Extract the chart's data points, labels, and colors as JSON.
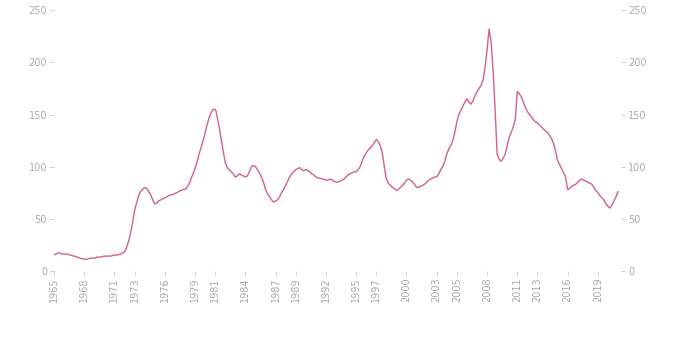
{
  "line_color": "#d4608a",
  "line_width": 1.0,
  "background_color": "#ffffff",
  "ylim": [
    0,
    250
  ],
  "yticks": [
    0,
    50,
    100,
    150,
    200,
    250
  ],
  "xtick_years": [
    1965,
    1968,
    1971,
    1973,
    1976,
    1979,
    1981,
    1984,
    1987,
    1989,
    1992,
    1995,
    1997,
    2000,
    2003,
    2005,
    2008,
    2011,
    2013,
    2016,
    2019
  ],
  "xlim_start": 1965,
  "xlim_end": 2021.3,
  "detailed_points": [
    [
      1965.0,
      15
    ],
    [
      1965.2,
      16
    ],
    [
      1965.4,
      17
    ],
    [
      1965.6,
      17
    ],
    [
      1965.8,
      16
    ],
    [
      1966.0,
      16
    ],
    [
      1966.3,
      16
    ],
    [
      1966.6,
      15
    ],
    [
      1967.0,
      14
    ],
    [
      1967.3,
      13
    ],
    [
      1967.6,
      12
    ],
    [
      1968.0,
      11
    ],
    [
      1968.3,
      11
    ],
    [
      1968.6,
      12
    ],
    [
      1969.0,
      12
    ],
    [
      1969.3,
      13
    ],
    [
      1969.6,
      13
    ],
    [
      1970.0,
      14
    ],
    [
      1970.3,
      14
    ],
    [
      1970.6,
      14
    ],
    [
      1971.0,
      15
    ],
    [
      1971.3,
      15
    ],
    [
      1971.6,
      16
    ],
    [
      1972.0,
      18
    ],
    [
      1972.2,
      22
    ],
    [
      1972.4,
      28
    ],
    [
      1972.6,
      36
    ],
    [
      1972.8,
      46
    ],
    [
      1973.0,
      58
    ],
    [
      1973.2,
      65
    ],
    [
      1973.4,
      72
    ],
    [
      1973.6,
      76
    ],
    [
      1973.8,
      78
    ],
    [
      1974.0,
      80
    ],
    [
      1974.2,
      79
    ],
    [
      1974.4,
      76
    ],
    [
      1974.6,
      73
    ],
    [
      1974.8,
      68
    ],
    [
      1975.0,
      64
    ],
    [
      1975.2,
      65
    ],
    [
      1975.4,
      67
    ],
    [
      1975.6,
      68
    ],
    [
      1975.8,
      69
    ],
    [
      1976.0,
      70
    ],
    [
      1976.2,
      71
    ],
    [
      1976.4,
      72
    ],
    [
      1976.6,
      73
    ],
    [
      1976.8,
      73
    ],
    [
      1977.0,
      74
    ],
    [
      1977.2,
      75
    ],
    [
      1977.4,
      76
    ],
    [
      1977.6,
      77
    ],
    [
      1977.8,
      78
    ],
    [
      1978.0,
      78
    ],
    [
      1978.2,
      80
    ],
    [
      1978.4,
      83
    ],
    [
      1978.6,
      88
    ],
    [
      1978.8,
      93
    ],
    [
      1979.0,
      98
    ],
    [
      1979.2,
      104
    ],
    [
      1979.4,
      112
    ],
    [
      1979.6,
      118
    ],
    [
      1979.8,
      125
    ],
    [
      1980.0,
      132
    ],
    [
      1980.2,
      140
    ],
    [
      1980.4,
      147
    ],
    [
      1980.6,
      152
    ],
    [
      1980.8,
      155
    ],
    [
      1981.0,
      155
    ],
    [
      1981.1,
      153
    ],
    [
      1981.2,
      148
    ],
    [
      1981.4,
      138
    ],
    [
      1981.6,
      126
    ],
    [
      1981.8,
      115
    ],
    [
      1982.0,
      104
    ],
    [
      1982.2,
      99
    ],
    [
      1982.4,
      97
    ],
    [
      1982.6,
      95
    ],
    [
      1982.8,
      93
    ],
    [
      1983.0,
      90
    ],
    [
      1983.2,
      91
    ],
    [
      1983.4,
      93
    ],
    [
      1983.6,
      92
    ],
    [
      1983.8,
      91
    ],
    [
      1984.0,
      90
    ],
    [
      1984.2,
      91
    ],
    [
      1984.4,
      95
    ],
    [
      1984.6,
      100
    ],
    [
      1984.8,
      101
    ],
    [
      1985.0,
      100
    ],
    [
      1985.2,
      97
    ],
    [
      1985.4,
      94
    ],
    [
      1985.6,
      90
    ],
    [
      1985.8,
      85
    ],
    [
      1986.0,
      78
    ],
    [
      1986.2,
      74
    ],
    [
      1986.4,
      71
    ],
    [
      1986.6,
      68
    ],
    [
      1986.8,
      66
    ],
    [
      1987.0,
      67
    ],
    [
      1987.2,
      68
    ],
    [
      1987.4,
      71
    ],
    [
      1987.6,
      75
    ],
    [
      1987.8,
      78
    ],
    [
      1988.0,
      82
    ],
    [
      1988.2,
      86
    ],
    [
      1988.4,
      90
    ],
    [
      1988.6,
      93
    ],
    [
      1988.8,
      95
    ],
    [
      1989.0,
      97
    ],
    [
      1989.2,
      98
    ],
    [
      1989.4,
      99
    ],
    [
      1989.6,
      97
    ],
    [
      1989.8,
      96
    ],
    [
      1990.0,
      97
    ],
    [
      1990.2,
      96
    ],
    [
      1990.4,
      95
    ],
    [
      1990.6,
      93
    ],
    [
      1990.8,
      92
    ],
    [
      1991.0,
      90
    ],
    [
      1991.2,
      89
    ],
    [
      1991.4,
      89
    ],
    [
      1991.6,
      88
    ],
    [
      1991.8,
      88
    ],
    [
      1992.0,
      87
    ],
    [
      1992.2,
      87
    ],
    [
      1992.4,
      88
    ],
    [
      1992.6,
      87
    ],
    [
      1992.8,
      86
    ],
    [
      1993.0,
      85
    ],
    [
      1993.2,
      85
    ],
    [
      1993.4,
      86
    ],
    [
      1993.6,
      87
    ],
    [
      1993.8,
      88
    ],
    [
      1994.0,
      90
    ],
    [
      1994.2,
      92
    ],
    [
      1994.4,
      93
    ],
    [
      1994.6,
      94
    ],
    [
      1994.8,
      95
    ],
    [
      1995.0,
      95
    ],
    [
      1995.2,
      97
    ],
    [
      1995.4,
      100
    ],
    [
      1995.6,
      105
    ],
    [
      1995.8,
      110
    ],
    [
      1996.0,
      113
    ],
    [
      1996.2,
      116
    ],
    [
      1996.4,
      118
    ],
    [
      1996.6,
      120
    ],
    [
      1996.8,
      123
    ],
    [
      1997.0,
      126
    ],
    [
      1997.2,
      124
    ],
    [
      1997.4,
      120
    ],
    [
      1997.6,
      113
    ],
    [
      1997.8,
      100
    ],
    [
      1998.0,
      88
    ],
    [
      1998.2,
      84
    ],
    [
      1998.4,
      82
    ],
    [
      1998.6,
      80
    ],
    [
      1998.8,
      79
    ],
    [
      1999.0,
      77
    ],
    [
      1999.2,
      78
    ],
    [
      1999.4,
      80
    ],
    [
      1999.6,
      82
    ],
    [
      1999.8,
      84
    ],
    [
      2000.0,
      87
    ],
    [
      2000.2,
      88
    ],
    [
      2000.4,
      87
    ],
    [
      2000.6,
      85
    ],
    [
      2000.8,
      83
    ],
    [
      2001.0,
      80
    ],
    [
      2001.2,
      80
    ],
    [
      2001.4,
      81
    ],
    [
      2001.6,
      82
    ],
    [
      2001.8,
      83
    ],
    [
      2002.0,
      85
    ],
    [
      2002.2,
      87
    ],
    [
      2002.4,
      88
    ],
    [
      2002.6,
      89
    ],
    [
      2002.8,
      90
    ],
    [
      2003.0,
      90
    ],
    [
      2003.2,
      93
    ],
    [
      2003.4,
      97
    ],
    [
      2003.6,
      100
    ],
    [
      2003.8,
      105
    ],
    [
      2004.0,
      112
    ],
    [
      2004.2,
      117
    ],
    [
      2004.4,
      120
    ],
    [
      2004.6,
      125
    ],
    [
      2004.8,
      133
    ],
    [
      2005.0,
      143
    ],
    [
      2005.2,
      150
    ],
    [
      2005.4,
      154
    ],
    [
      2005.6,
      158
    ],
    [
      2005.8,
      162
    ],
    [
      2006.0,
      165
    ],
    [
      2006.2,
      162
    ],
    [
      2006.4,
      160
    ],
    [
      2006.6,
      163
    ],
    [
      2006.8,
      168
    ],
    [
      2007.0,
      172
    ],
    [
      2007.2,
      175
    ],
    [
      2007.4,
      178
    ],
    [
      2007.6,
      183
    ],
    [
      2007.8,
      195
    ],
    [
      2008.0,
      212
    ],
    [
      2008.2,
      232
    ],
    [
      2008.4,
      220
    ],
    [
      2008.6,
      192
    ],
    [
      2008.8,
      155
    ],
    [
      2009.0,
      112
    ],
    [
      2009.2,
      107
    ],
    [
      2009.4,
      105
    ],
    [
      2009.6,
      108
    ],
    [
      2009.8,
      112
    ],
    [
      2010.0,
      120
    ],
    [
      2010.2,
      128
    ],
    [
      2010.4,
      133
    ],
    [
      2010.6,
      138
    ],
    [
      2010.8,
      145
    ],
    [
      2011.0,
      172
    ],
    [
      2011.2,
      170
    ],
    [
      2011.4,
      167
    ],
    [
      2011.6,
      162
    ],
    [
      2011.8,
      157
    ],
    [
      2012.0,
      153
    ],
    [
      2012.2,
      150
    ],
    [
      2012.4,
      148
    ],
    [
      2012.6,
      145
    ],
    [
      2012.8,
      143
    ],
    [
      2013.0,
      142
    ],
    [
      2013.2,
      140
    ],
    [
      2013.4,
      138
    ],
    [
      2013.6,
      136
    ],
    [
      2013.8,
      134
    ],
    [
      2014.0,
      133
    ],
    [
      2014.2,
      130
    ],
    [
      2014.4,
      127
    ],
    [
      2014.6,
      122
    ],
    [
      2014.8,
      115
    ],
    [
      2015.0,
      106
    ],
    [
      2015.2,
      102
    ],
    [
      2015.4,
      98
    ],
    [
      2015.6,
      94
    ],
    [
      2015.8,
      90
    ],
    [
      2016.0,
      78
    ],
    [
      2016.2,
      79
    ],
    [
      2016.4,
      81
    ],
    [
      2016.6,
      82
    ],
    [
      2016.8,
      83
    ],
    [
      2017.0,
      85
    ],
    [
      2017.2,
      87
    ],
    [
      2017.4,
      88
    ],
    [
      2017.6,
      87
    ],
    [
      2017.8,
      86
    ],
    [
      2018.0,
      85
    ],
    [
      2018.2,
      84
    ],
    [
      2018.4,
      83
    ],
    [
      2018.6,
      80
    ],
    [
      2018.8,
      77
    ],
    [
      2019.0,
      75
    ],
    [
      2019.2,
      72
    ],
    [
      2019.4,
      70
    ],
    [
      2019.6,
      68
    ],
    [
      2019.8,
      64
    ],
    [
      2020.0,
      62
    ],
    [
      2020.2,
      60
    ],
    [
      2020.4,
      63
    ],
    [
      2020.6,
      67
    ],
    [
      2020.8,
      71
    ],
    [
      2021.0,
      76
    ]
  ]
}
